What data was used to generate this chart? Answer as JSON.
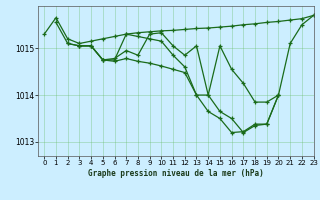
{
  "title": "Graphe pression niveau de la mer (hPa)",
  "background_color": "#cceeff",
  "grid_color": "#66bb66",
  "line_color": "#1a6b1a",
  "ylim": [
    1012.7,
    1015.9
  ],
  "xlim": [
    -0.5,
    23
  ],
  "yticks": [
    1013,
    1014,
    1015
  ],
  "xticks": [
    0,
    1,
    2,
    3,
    4,
    5,
    6,
    7,
    8,
    9,
    10,
    11,
    12,
    13,
    14,
    15,
    16,
    17,
    18,
    19,
    20,
    21,
    22,
    23
  ],
  "series1_x": [
    0,
    1,
    2,
    3,
    4,
    5,
    6,
    7,
    8,
    9,
    10,
    11,
    12,
    13,
    14,
    15,
    16,
    17,
    18,
    19,
    20,
    21,
    22,
    23
  ],
  "series1_y": [
    1015.3,
    1015.65,
    1015.2,
    1015.1,
    1015.15,
    1015.2,
    1015.25,
    1015.3,
    1015.33,
    1015.35,
    1015.37,
    1015.38,
    1015.4,
    1015.42,
    1015.43,
    1015.45,
    1015.47,
    1015.5,
    1015.52,
    1015.55,
    1015.57,
    1015.6,
    1015.63,
    1015.7
  ],
  "series2_x": [
    1,
    2,
    3,
    4,
    5,
    6,
    7,
    8,
    9,
    10,
    11,
    12,
    13,
    14,
    15,
    16,
    17,
    18,
    19,
    20,
    21,
    22,
    23
  ],
  "series2_y": [
    1015.55,
    1015.1,
    1015.05,
    1015.05,
    1014.75,
    1014.78,
    1014.95,
    1014.85,
    1015.3,
    1015.33,
    1015.05,
    1014.85,
    1015.05,
    1014.0,
    1015.05,
    1014.55,
    1014.25,
    1013.85,
    1013.85,
    1014.0,
    1015.1,
    1015.5,
    1015.7
  ],
  "series3_x": [
    2,
    3,
    4,
    5,
    6,
    7,
    8,
    9,
    10,
    11,
    12,
    13,
    14,
    15,
    16,
    17,
    18,
    19,
    20
  ],
  "series3_y": [
    1015.1,
    1015.05,
    1015.05,
    1014.75,
    1014.75,
    1015.3,
    1015.25,
    1015.2,
    1015.15,
    1014.85,
    1014.6,
    1014.0,
    1014.0,
    1013.65,
    1013.5,
    1013.2,
    1013.35,
    1013.38,
    1014.0
  ],
  "series4_x": [
    3,
    4,
    5,
    6,
    7,
    8,
    9,
    10,
    11,
    12,
    13,
    14,
    15,
    16,
    17,
    18,
    19,
    20
  ],
  "series4_y": [
    1015.05,
    1015.05,
    1014.75,
    1014.72,
    1014.78,
    1014.72,
    1014.68,
    1014.62,
    1014.55,
    1014.48,
    1014.0,
    1013.65,
    1013.5,
    1013.2,
    1013.22,
    1013.38,
    1013.38,
    1014.0
  ]
}
